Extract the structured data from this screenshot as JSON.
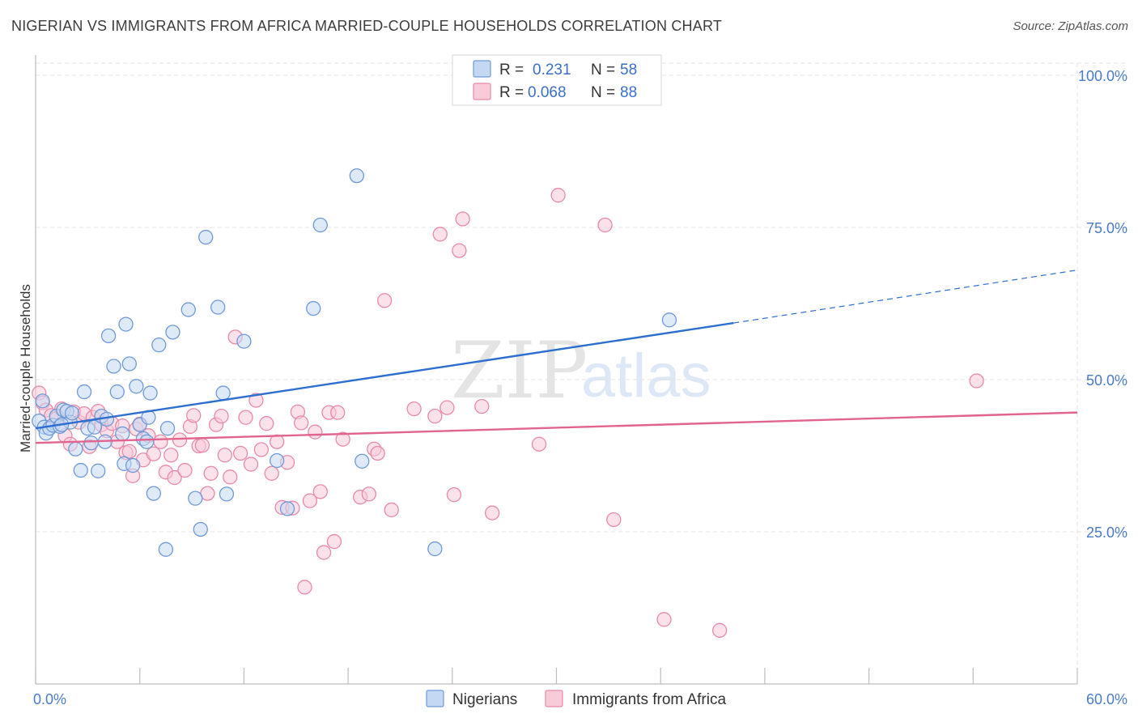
{
  "title": "NIGERIAN VS IMMIGRANTS FROM AFRICA MARRIED-COUPLE HOUSEHOLDS CORRELATION CHART",
  "source": "Source: ZipAtlas.com",
  "watermark": {
    "part1": "ZIP",
    "part2": "atlas"
  },
  "colors": {
    "nigerian_fill": "#c5d8f3",
    "nigerian_stroke": "#6f9ad8",
    "nigerian_line": "#2d6fcf",
    "africa_fill": "#f8cbd9",
    "africa_stroke": "#e88aa8",
    "africa_line": "#e0648f",
    "tick_label": "#4a7bc8",
    "grid": "#e3e3e3"
  },
  "legend": {
    "r_label": "R =",
    "n_label": "N =",
    "rows": [
      {
        "r": "0.231",
        "n": "58"
      },
      {
        "r": "0.068",
        "n": "88"
      }
    ]
  },
  "chart_data": {
    "type": "scatter",
    "title": "NIGERIAN VS IMMIGRANTS FROM AFRICA MARRIED-COUPLE HOUSEHOLDS CORRELATION CHART",
    "xlabel": "",
    "ylabel": "Married-couple Households",
    "xlim": [
      0,
      60
    ],
    "ylim": [
      0,
      102
    ],
    "x_tick_labels": [
      "0.0%",
      "60.0%"
    ],
    "y_ticks": [
      25,
      50,
      75,
      100
    ],
    "y_tick_labels": [
      "25.0%",
      "50.0%",
      "75.0%",
      "100.0%"
    ],
    "grid": true,
    "legend_position": "top-center",
    "series": [
      {
        "name": "Nigerians",
        "r": 0.231,
        "n": 58,
        "trend": {
          "x0": 0,
          "y0": 42.0,
          "x1": 40.2,
          "y1": 59.3,
          "dashed_to_x": 60,
          "dashed_to_y": 68.0
        },
        "points": [
          [
            0.2,
            43.2
          ],
          [
            0.4,
            46.5
          ],
          [
            0.5,
            42.2
          ],
          [
            0.6,
            41.2
          ],
          [
            0.8,
            42.0
          ],
          [
            1.0,
            42.5
          ],
          [
            1.2,
            44.0
          ],
          [
            1.4,
            42.3
          ],
          [
            1.6,
            45.0
          ],
          [
            1.8,
            44.8
          ],
          [
            2.0,
            43.0
          ],
          [
            2.1,
            44.5
          ],
          [
            2.3,
            38.6
          ],
          [
            2.6,
            35.1
          ],
          [
            2.8,
            48.0
          ],
          [
            3.0,
            42.0
          ],
          [
            3.2,
            39.6
          ],
          [
            3.4,
            42.2
          ],
          [
            3.6,
            35.0
          ],
          [
            3.8,
            44.0
          ],
          [
            4.0,
            39.8
          ],
          [
            4.2,
            57.2
          ],
          [
            4.5,
            52.2
          ],
          [
            4.7,
            48.0
          ],
          [
            5.0,
            41.1
          ],
          [
            5.1,
            36.2
          ],
          [
            5.2,
            59.1
          ],
          [
            5.4,
            52.6
          ],
          [
            5.6,
            35.9
          ],
          [
            5.8,
            48.9
          ],
          [
            6.0,
            42.6
          ],
          [
            6.2,
            40.3
          ],
          [
            6.4,
            39.8
          ],
          [
            6.5,
            43.8
          ],
          [
            6.6,
            47.8
          ],
          [
            6.8,
            31.3
          ],
          [
            7.1,
            55.7
          ],
          [
            7.5,
            22.1
          ],
          [
            7.6,
            42.0
          ],
          [
            7.9,
            57.8
          ],
          [
            8.8,
            61.5
          ],
          [
            9.2,
            30.5
          ],
          [
            9.5,
            25.4
          ],
          [
            9.8,
            73.4
          ],
          [
            10.5,
            61.9
          ],
          [
            10.8,
            47.8
          ],
          [
            11.0,
            31.2
          ],
          [
            12.0,
            56.3
          ],
          [
            13.9,
            36.7
          ],
          [
            14.5,
            28.8
          ],
          [
            16.0,
            61.7
          ],
          [
            16.4,
            75.4
          ],
          [
            18.5,
            83.5
          ],
          [
            18.8,
            36.6
          ],
          [
            23.0,
            22.2
          ],
          [
            36.5,
            59.8
          ],
          [
            4.1,
            43.5
          ],
          [
            1.5,
            42.6
          ]
        ]
      },
      {
        "name": "Immigrants from Africa",
        "r": 0.068,
        "n": 88,
        "trend": {
          "x0": 0,
          "y0": 39.6,
          "x1": 60,
          "y1": 44.6
        },
        "points": [
          [
            0.2,
            47.8
          ],
          [
            0.4,
            46.2
          ],
          [
            0.6,
            45.0
          ],
          [
            0.9,
            44.1
          ],
          [
            1.2,
            43.6
          ],
          [
            1.5,
            45.2
          ],
          [
            1.7,
            40.8
          ],
          [
            2.0,
            39.4
          ],
          [
            2.2,
            44.7
          ],
          [
            2.5,
            43.0
          ],
          [
            2.8,
            44.4
          ],
          [
            3.1,
            39.0
          ],
          [
            3.3,
            43.8
          ],
          [
            3.6,
            44.8
          ],
          [
            3.8,
            42.6
          ],
          [
            4.1,
            41.6
          ],
          [
            4.4,
            42.8
          ],
          [
            4.7,
            39.8
          ],
          [
            5.0,
            42.4
          ],
          [
            5.2,
            38.0
          ],
          [
            5.4,
            38.2
          ],
          [
            5.6,
            34.2
          ],
          [
            5.8,
            41.9
          ],
          [
            6.0,
            42.7
          ],
          [
            6.2,
            36.8
          ],
          [
            6.5,
            40.8
          ],
          [
            6.8,
            37.8
          ],
          [
            7.2,
            39.8
          ],
          [
            7.5,
            34.8
          ],
          [
            7.8,
            37.6
          ],
          [
            8.0,
            33.9
          ],
          [
            8.3,
            40.1
          ],
          [
            8.6,
            35.1
          ],
          [
            8.9,
            42.3
          ],
          [
            9.1,
            44.1
          ],
          [
            9.4,
            39.1
          ],
          [
            9.6,
            39.2
          ],
          [
            9.9,
            31.3
          ],
          [
            10.1,
            34.6
          ],
          [
            10.4,
            42.6
          ],
          [
            10.7,
            44.0
          ],
          [
            10.9,
            37.6
          ],
          [
            11.2,
            34.0
          ],
          [
            11.5,
            57.0
          ],
          [
            11.8,
            37.9
          ],
          [
            12.1,
            43.8
          ],
          [
            12.4,
            36.1
          ],
          [
            12.7,
            46.6
          ],
          [
            13.0,
            38.5
          ],
          [
            13.3,
            42.8
          ],
          [
            13.6,
            34.6
          ],
          [
            13.9,
            39.8
          ],
          [
            14.2,
            29.0
          ],
          [
            14.5,
            36.4
          ],
          [
            14.8,
            28.9
          ],
          [
            15.1,
            44.7
          ],
          [
            15.3,
            42.9
          ],
          [
            15.5,
            15.9
          ],
          [
            15.8,
            30.1
          ],
          [
            16.1,
            41.4
          ],
          [
            16.4,
            31.6
          ],
          [
            16.6,
            21.6
          ],
          [
            16.9,
            44.6
          ],
          [
            17.2,
            23.4
          ],
          [
            17.4,
            44.6
          ],
          [
            17.7,
            40.2
          ],
          [
            18.7,
            30.7
          ],
          [
            19.2,
            31.2
          ],
          [
            19.5,
            38.6
          ],
          [
            19.7,
            37.9
          ],
          [
            20.1,
            63.0
          ],
          [
            20.5,
            28.6
          ],
          [
            21.8,
            45.2
          ],
          [
            23.0,
            44.0
          ],
          [
            23.3,
            73.9
          ],
          [
            23.7,
            45.4
          ],
          [
            24.1,
            31.1
          ],
          [
            24.4,
            71.2
          ],
          [
            24.6,
            76.4
          ],
          [
            25.7,
            45.6
          ],
          [
            26.3,
            28.1
          ],
          [
            29.0,
            39.4
          ],
          [
            30.1,
            80.3
          ],
          [
            32.8,
            75.4
          ],
          [
            33.3,
            27.0
          ],
          [
            36.2,
            10.6
          ],
          [
            39.4,
            8.8
          ],
          [
            54.2,
            49.8
          ]
        ]
      }
    ]
  }
}
